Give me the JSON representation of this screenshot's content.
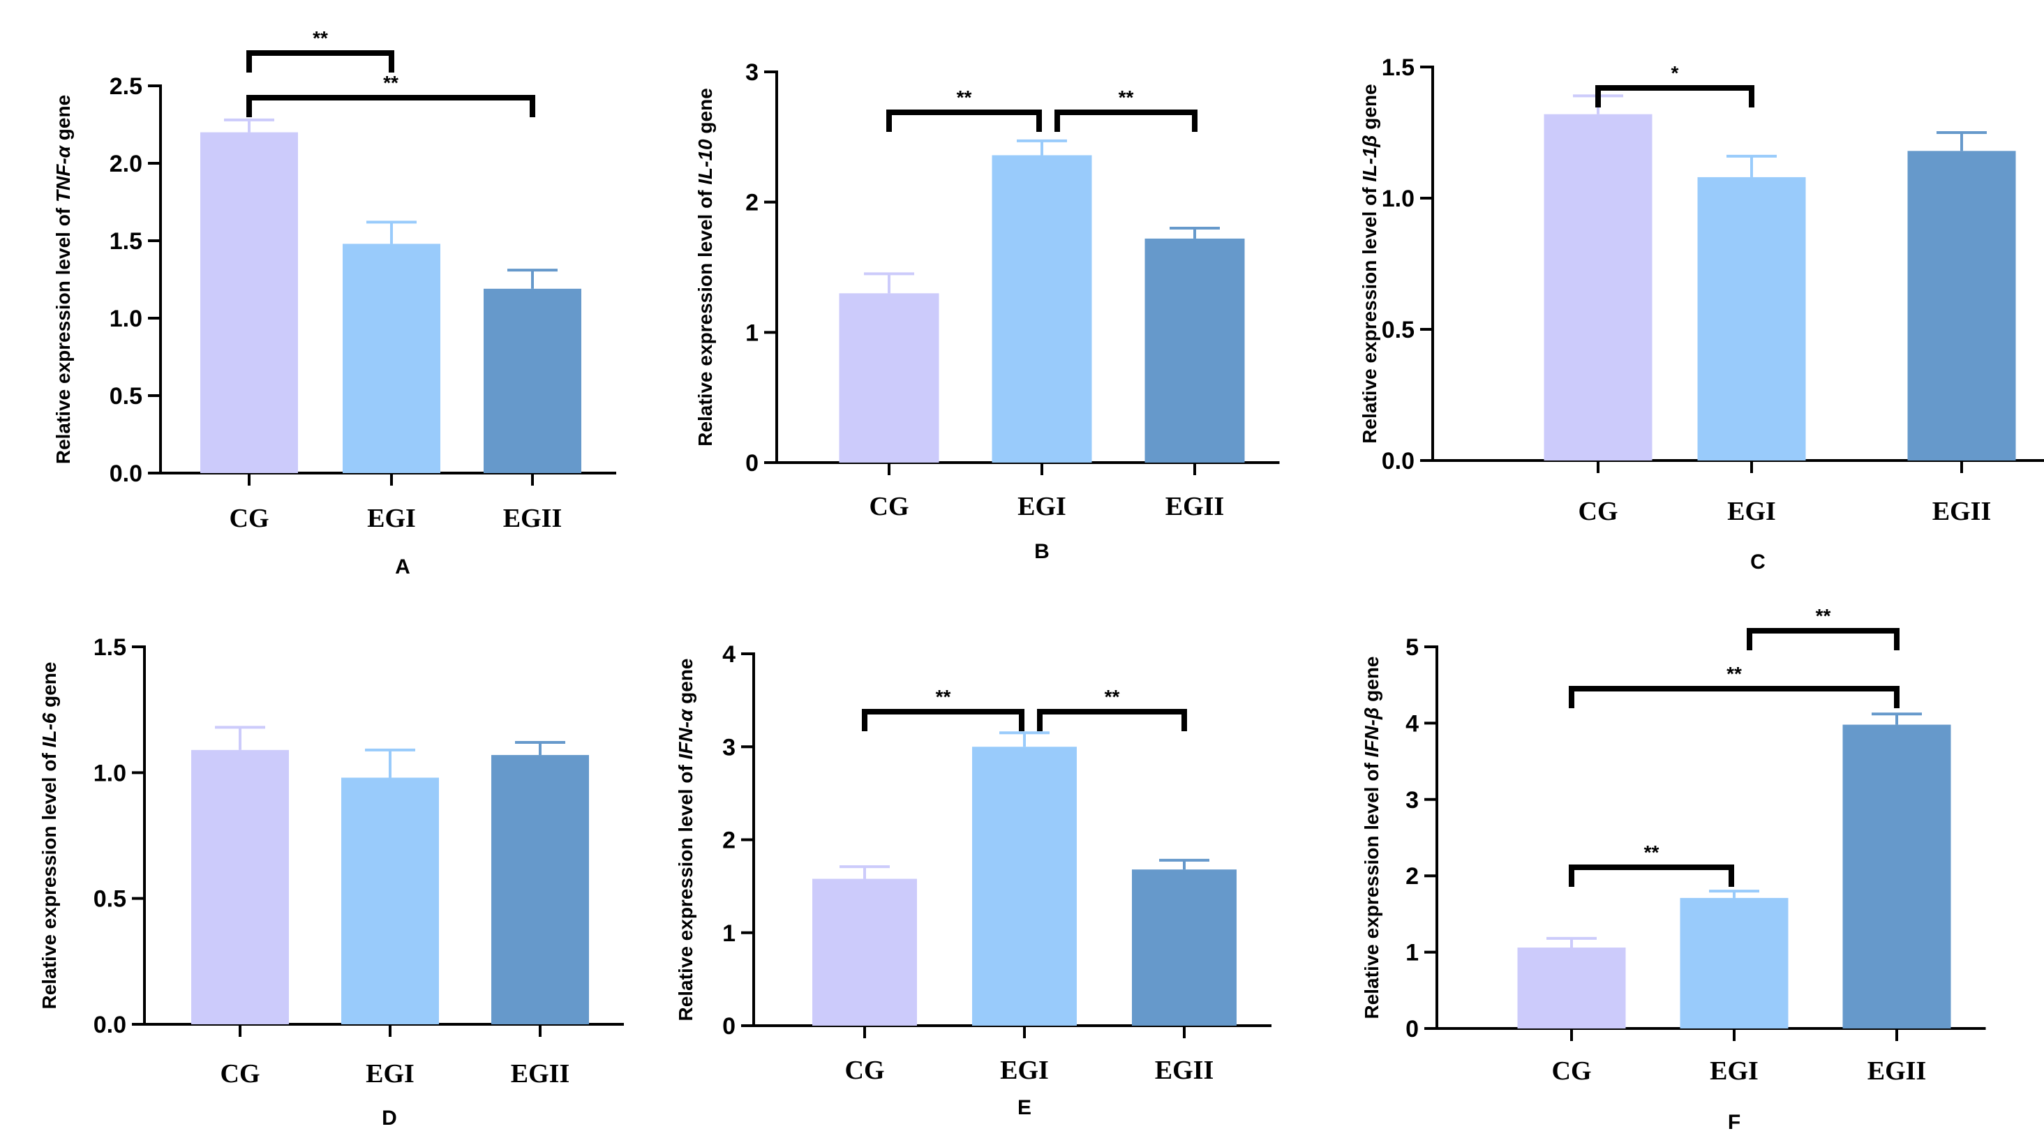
{
  "colors": {
    "CG": "#cccbfb",
    "EGI": "#99cbfb",
    "EGII": "#6699cb",
    "axis": "#000000"
  },
  "chart_data": [
    {
      "panel": "A",
      "type": "bar",
      "ylabel_prefix": "Relative expression level of ",
      "ylabel_gene": "TNF-α",
      "ylabel_suffix": " gene",
      "categories": [
        "CG",
        "EGI",
        "EGII"
      ],
      "values": [
        2.2,
        1.48,
        1.19
      ],
      "errors": [
        0.08,
        0.14,
        0.12
      ],
      "ylim": [
        0,
        2.5
      ],
      "yticks": [
        "0.0",
        "0.5",
        "1.0",
        "1.5",
        "2.0",
        "2.5"
      ],
      "significance": [
        {
          "from": 0,
          "to": 1,
          "label": "**"
        },
        {
          "from": 0,
          "to": 2,
          "label": "**"
        }
      ]
    },
    {
      "panel": "B",
      "type": "bar",
      "ylabel_prefix": "Relative expression level of ",
      "ylabel_gene": "IL-10",
      "ylabel_suffix": " gene",
      "categories": [
        "CG",
        "EGI",
        "EGII"
      ],
      "values": [
        1.3,
        2.36,
        1.72
      ],
      "errors": [
        0.15,
        0.11,
        0.08
      ],
      "ylim": [
        0,
        3
      ],
      "yticks": [
        "0",
        "1",
        "2",
        "3"
      ],
      "significance": [
        {
          "from": 0,
          "to": 1,
          "label": "**"
        },
        {
          "from": 1,
          "to": 2,
          "label": "**"
        }
      ]
    },
    {
      "panel": "C",
      "type": "bar",
      "ylabel_prefix": "Relative expression level of ",
      "ylabel_gene": "IL-1β",
      "ylabel_suffix": " gene",
      "categories": [
        "CG",
        "EGI",
        "EGII"
      ],
      "values": [
        1.32,
        1.08,
        1.18
      ],
      "errors": [
        0.07,
        0.08,
        0.07
      ],
      "ylim": [
        0,
        1.5
      ],
      "yticks": [
        "0.0",
        "0.5",
        "1.0",
        "1.5"
      ],
      "significance": [
        {
          "from": 0,
          "to": 1,
          "label": "*"
        }
      ]
    },
    {
      "panel": "D",
      "type": "bar",
      "ylabel_prefix": "Relative expression level of ",
      "ylabel_gene": "IL-6",
      "ylabel_suffix": " gene",
      "categories": [
        "CG",
        "EGI",
        "EGII"
      ],
      "values": [
        1.09,
        0.98,
        1.07
      ],
      "errors": [
        0.09,
        0.11,
        0.05
      ],
      "ylim": [
        0,
        1.5
      ],
      "yticks": [
        "0.0",
        "0.5",
        "1.0",
        "1.5"
      ],
      "significance": []
    },
    {
      "panel": "E",
      "type": "bar",
      "ylabel_prefix": "Relative expression level of ",
      "ylabel_gene": "IFN-α",
      "ylabel_suffix": " gene",
      "categories": [
        "CG",
        "EGI",
        "EGII"
      ],
      "values": [
        1.58,
        3.0,
        1.68
      ],
      "errors": [
        0.13,
        0.15,
        0.1
      ],
      "ylim": [
        0,
        4
      ],
      "yticks": [
        "0",
        "1",
        "2",
        "3",
        "4"
      ],
      "significance": [
        {
          "from": 0,
          "to": 1,
          "label": "**"
        },
        {
          "from": 1,
          "to": 2,
          "label": "**"
        }
      ]
    },
    {
      "panel": "F",
      "type": "bar",
      "ylabel_prefix": "Relative expression level of ",
      "ylabel_gene": "IFN-β",
      "ylabel_suffix": " gene",
      "categories": [
        "CG",
        "EGI",
        "EGII"
      ],
      "values": [
        1.06,
        1.71,
        3.98
      ],
      "errors": [
        0.12,
        0.09,
        0.14
      ],
      "ylim": [
        0,
        5
      ],
      "yticks": [
        "0",
        "1",
        "2",
        "3",
        "4",
        "5"
      ],
      "significance": [
        {
          "from": 0,
          "to": 1,
          "label": "**"
        },
        {
          "from": 1,
          "to": 2,
          "label": "**"
        },
        {
          "from": 0,
          "to": 2,
          "label": "**"
        }
      ]
    }
  ]
}
